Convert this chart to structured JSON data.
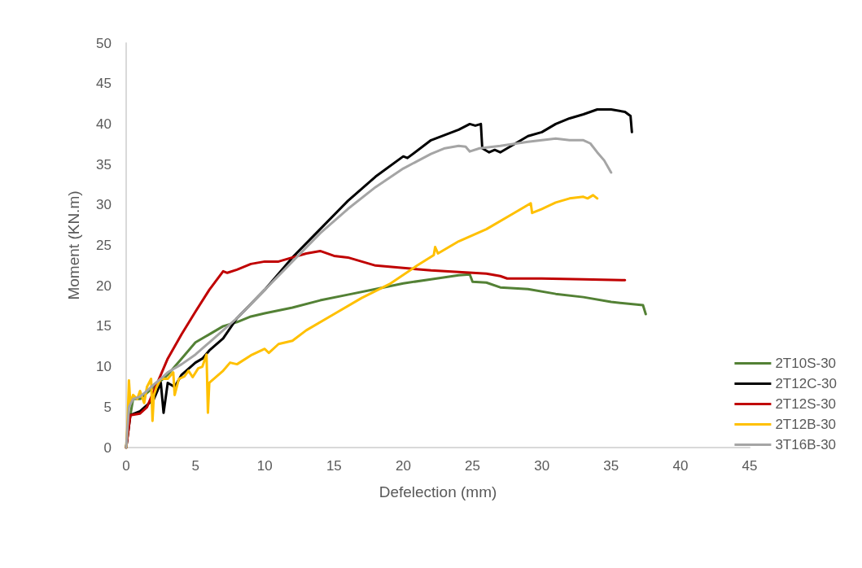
{
  "chart_data": {
    "type": "line",
    "xlabel": "Defelection (mm)",
    "ylabel": "Moment (KN.m)",
    "xlim": [
      0,
      45
    ],
    "xticks": [
      0,
      5,
      10,
      15,
      20,
      25,
      30,
      35,
      40,
      45
    ],
    "ylim": [
      0,
      50
    ],
    "yticks": [
      0,
      5,
      10,
      15,
      20,
      25,
      30,
      35,
      40,
      45,
      50
    ],
    "grid": false,
    "legend": "right",
    "marker": "none",
    "line_style": "solid",
    "series": [
      {
        "name": "2T10S-30",
        "color": "#538135",
        "x": [
          0,
          0.2,
          0.5,
          1,
          2,
          3,
          4,
          5,
          6,
          7,
          8,
          9,
          10,
          12,
          14,
          16,
          18,
          20,
          22,
          24,
          24.8,
          25,
          26,
          27,
          29,
          31,
          33,
          35,
          37.3,
          37.5
        ],
        "values": [
          0,
          3,
          6,
          6,
          7.5,
          9,
          11,
          13,
          14,
          15,
          15.5,
          16.2,
          16.6,
          17.3,
          18.2,
          18.9,
          19.6,
          20.3,
          20.8,
          21.3,
          21.4,
          20.5,
          20.4,
          19.8,
          19.6,
          19,
          18.6,
          18,
          17.6,
          16.5
        ]
      },
      {
        "name": "2T12C-30",
        "color": "#000000",
        "x": [
          0,
          0.3,
          1,
          2,
          2.5,
          2.7,
          3,
          3.5,
          4,
          5,
          5.5,
          6,
          7,
          8,
          10,
          12,
          14,
          16,
          18,
          20,
          20.3,
          22,
          24,
          24.8,
          25.2,
          25.6,
          25.7,
          26.2,
          26.6,
          27,
          28,
          29,
          30,
          31,
          32,
          33,
          34,
          35,
          36,
          36.4,
          36.5
        ],
        "values": [
          0,
          4,
          4.5,
          6,
          8,
          4.3,
          8,
          7.5,
          9,
          10.5,
          11,
          12,
          13.5,
          16,
          19.5,
          23.5,
          27,
          30.5,
          33.5,
          36,
          35.8,
          38,
          39.3,
          40,
          39.8,
          40,
          37,
          36.5,
          36.8,
          36.5,
          37.5,
          38.5,
          39,
          40,
          40.7,
          41.2,
          41.8,
          41.8,
          41.5,
          41,
          39
        ]
      },
      {
        "name": "2T12S-30",
        "color": "#c00000",
        "x": [
          0,
          0.3,
          1,
          1.5,
          2,
          2.5,
          3,
          4,
          5,
          6,
          7,
          7.3,
          8,
          9,
          10,
          11,
          12,
          13,
          14,
          14.5,
          15,
          16,
          17,
          18,
          20,
          22,
          24,
          26,
          27,
          27.5,
          30,
          33,
          36
        ],
        "values": [
          0,
          4,
          4.2,
          5,
          7,
          9,
          11,
          14,
          16.8,
          19.5,
          21.8,
          21.6,
          22,
          22.7,
          23,
          23,
          23.5,
          24,
          24.3,
          24,
          23.7,
          23.5,
          23,
          22.5,
          22.2,
          21.9,
          21.7,
          21.5,
          21.2,
          20.9,
          20.9,
          20.8,
          20.7
        ]
      },
      {
        "name": "2T12B-30",
        "color": "#ffc000",
        "x": [
          0,
          0.1,
          0.2,
          0.3,
          0.5,
          0.8,
          1,
          1.3,
          1.5,
          1.8,
          1.9,
          2,
          2.2,
          2.5,
          3,
          3.4,
          3.5,
          3.8,
          4.2,
          4.5,
          4.8,
          5.2,
          5.5,
          5.8,
          5.9,
          6,
          7,
          7.5,
          8,
          9,
          10,
          10.3,
          11,
          12,
          13,
          15,
          17,
          19,
          21,
          22.2,
          22.3,
          22.5,
          24,
          26,
          28,
          29.2,
          29.3,
          30,
          31,
          32,
          33,
          33.3,
          33.7,
          34
        ],
        "values": [
          0,
          3,
          8.3,
          5.5,
          6.5,
          6,
          7,
          5.5,
          7.5,
          8.5,
          3.3,
          6.5,
          7.5,
          8.5,
          8.5,
          9.3,
          6.5,
          8.5,
          8.8,
          9.5,
          8.7,
          9.8,
          10,
          11.5,
          4.3,
          8,
          9.5,
          10.5,
          10.3,
          11.4,
          12.2,
          11.7,
          12.8,
          13.2,
          14.5,
          16.5,
          18.5,
          20.2,
          22.5,
          23.8,
          24.8,
          24,
          25.5,
          27,
          29,
          30.2,
          29,
          29.5,
          30.3,
          30.8,
          31,
          30.8,
          31.2,
          30.8
        ]
      },
      {
        "name": "3T16B-30",
        "color": "#a5a5a5",
        "x": [
          0,
          0.2,
          0.5,
          1,
          1.5,
          2,
          2.5,
          3,
          4,
          5,
          6,
          7,
          8,
          10,
          12,
          14,
          16,
          18,
          20,
          22,
          23,
          24,
          24.5,
          24.8,
          25.5,
          27,
          29,
          30,
          31,
          32,
          33,
          33.5,
          34,
          34.5,
          35
        ],
        "values": [
          0,
          5,
          6,
          6.3,
          7,
          7.8,
          8.5,
          9.3,
          10.3,
          11.5,
          13,
          14.5,
          16,
          19.5,
          23,
          26.5,
          29.5,
          32.2,
          34.5,
          36.3,
          37,
          37.3,
          37.2,
          36.6,
          37,
          37.3,
          37.8,
          38,
          38.2,
          38,
          38,
          37.6,
          36.5,
          35.5,
          34
        ]
      }
    ]
  }
}
